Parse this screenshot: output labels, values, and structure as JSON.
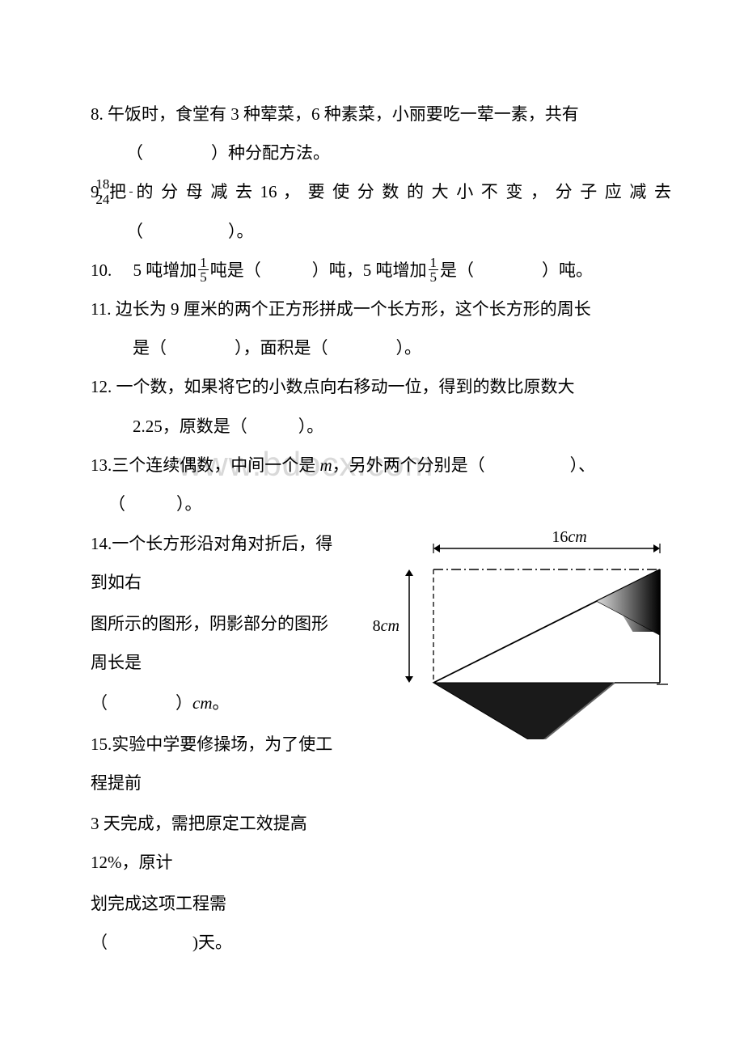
{
  "watermark": "www.bdocx.com",
  "questions": {
    "q8_l1": "8. 午饭时，食堂有 3 种荤菜，6 种素菜，小丽要吃一荤一素，共有",
    "q8_l2": "（　　　　）种分配方法。",
    "q9_a": "9. 把",
    "q9_num": "18",
    "q9_den": "24",
    "q9_b": "的 分 母 减 去 16 ， 要 使 分 数 的 大 小 不 变 ， 分 子 应 减 去",
    "q9_l2": "（　　　　　）。",
    "q10_a": "10.  5 吨增加",
    "q10_num1": "1",
    "q10_den1": "5",
    "q10_b": "吨是（　　　）吨，5 吨增加",
    "q10_num2": "1",
    "q10_den2": "5",
    "q10_c": "是（　　　　）吨。",
    "q11_l1": "11. 边长为 9 厘米的两个正方形拼成一个长方形，这个长方形的周长",
    "q11_l2": "是（　　　　），面积是（　　　　）。",
    "q12_l1": "12. 一个数，如果将它的小数点向右移动一位，得到的数比原数大",
    "q12_l2": "2.25，原数是（　　　）。",
    "q13_a": "13.三个连续偶数，中间一个是 ",
    "q13_m": "m",
    "q13_b": "，另外两个分别是（　　　　　）、",
    "q13_l2": "（　　　）。",
    "q14_l1": "14.一个长方形沿对角对折后，得到如右",
    "q14_l2": "图所示的图形，阴影部分的图形周长是",
    "q14_l3a": "（　　　　）",
    "q14_cm": "cm",
    "q14_l3b": "。",
    "q15_l1": "15.实验中学要修操场，为了使工程提前",
    "q15_l2": "3 天完成，需把原定工效提高 12%，原计",
    "q15_l3": "划完成这项工程需（　　　　　)天。"
  },
  "diagram": {
    "width_label_val": "16",
    "width_label_unit": "cm",
    "height_label_val": "8",
    "height_label_unit": "cm",
    "colors": {
      "stroke": "#000000",
      "fill_dark": "#1a1a1a",
      "fill_grad_light": "#dcdcdc",
      "fill_grad_dark": "#000000",
      "bg": "#ffffff"
    },
    "rect_w": 280,
    "rect_h": 140,
    "arrow_size": 8,
    "font_size": 20
  }
}
